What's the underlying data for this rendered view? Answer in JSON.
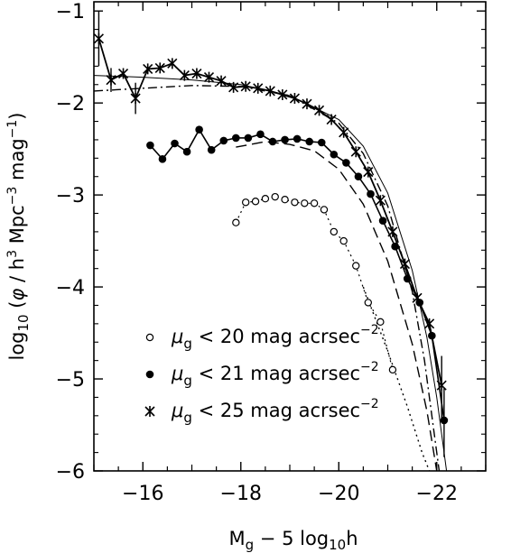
{
  "chart_data": {
    "type": "scatter",
    "title": "",
    "xlabel": "M_g − 5 log₁₀h",
    "ylabel": "log₁₀ (φ / h³ Mpc⁻³ mag⁻¹)",
    "xlim": [
      -15.0,
      -23.0
    ],
    "ylim": [
      -6.0,
      -0.9
    ],
    "x_reversed": true,
    "x_ticks": [
      -16,
      -18,
      -20,
      -22
    ],
    "x_tick_labels": [
      "−16",
      "−18",
      "−20",
      "−22"
    ],
    "y_ticks": [
      -1,
      -2,
      -3,
      -4,
      -5,
      -6
    ],
    "y_tick_labels": [
      "−1",
      "−2",
      "−3",
      "−4",
      "−5",
      "−6"
    ],
    "legend": {
      "placement": "lower-left",
      "entries": [
        {
          "marker": "open-circle",
          "symbol": "μ",
          "sub": "g",
          "text": " < 20 mag acrsec",
          "sup": "−2"
        },
        {
          "marker": "filled-circle",
          "symbol": "μ",
          "sub": "g",
          "text": " < 21 mag acrsec",
          "sup": "−2"
        },
        {
          "marker": "star",
          "symbol": "μ",
          "sub": "g",
          "text": " < 25 mag acrsec",
          "sup": "−2"
        }
      ]
    },
    "series": [
      {
        "marker": "star",
        "line": "solid",
        "points": [
          [
            -15.1,
            -1.3
          ],
          [
            -15.35,
            -1.75
          ],
          [
            -15.6,
            -1.68
          ],
          [
            -15.85,
            -1.95
          ],
          [
            -16.1,
            -1.63
          ],
          [
            -16.35,
            -1.62
          ],
          [
            -16.6,
            -1.57
          ],
          [
            -16.85,
            -1.7
          ],
          [
            -17.1,
            -1.68
          ],
          [
            -17.35,
            -1.72
          ],
          [
            -17.6,
            -1.76
          ],
          [
            -17.85,
            -1.83
          ],
          [
            -18.1,
            -1.82
          ],
          [
            -18.35,
            -1.84
          ],
          [
            -18.6,
            -1.87
          ],
          [
            -18.85,
            -1.91
          ],
          [
            -19.1,
            -1.95
          ],
          [
            -19.35,
            -2.01
          ],
          [
            -19.6,
            -2.08
          ],
          [
            -19.85,
            -2.18
          ],
          [
            -20.1,
            -2.32
          ],
          [
            -20.35,
            -2.53
          ],
          [
            -20.6,
            -2.75
          ],
          [
            -20.85,
            -3.06
          ],
          [
            -21.1,
            -3.4
          ],
          [
            -21.35,
            -3.75
          ],
          [
            -21.6,
            -4.12
          ],
          [
            -21.85,
            -4.4
          ],
          [
            -22.1,
            -5.07
          ]
        ],
        "error_bars": [
          [
            -15.1,
            -1.0,
            -1.6
          ],
          [
            -15.35,
            -1.62,
            -1.88
          ],
          [
            -15.85,
            -1.78,
            -2.12
          ],
          [
            -22.1,
            -4.75,
            -5.45
          ]
        ]
      },
      {
        "marker": "filled-circle",
        "line": "solid-segments",
        "points": [
          [
            -16.15,
            -2.46
          ],
          [
            -16.4,
            -2.61
          ],
          [
            -16.65,
            -2.44
          ],
          [
            -16.9,
            -2.53
          ],
          [
            -17.15,
            -2.29
          ],
          [
            -17.4,
            -2.51
          ],
          [
            -17.65,
            -2.41
          ],
          [
            -17.9,
            -2.38
          ],
          [
            -18.15,
            -2.38
          ],
          [
            -18.4,
            -2.34
          ],
          [
            -18.65,
            -2.42
          ],
          [
            -18.9,
            -2.4
          ],
          [
            -19.15,
            -2.39
          ],
          [
            -19.4,
            -2.42
          ],
          [
            -19.65,
            -2.43
          ],
          [
            -19.9,
            -2.56
          ],
          [
            -20.15,
            -2.65
          ],
          [
            -20.4,
            -2.8
          ],
          [
            -20.65,
            -2.99
          ],
          [
            -20.9,
            -3.28
          ],
          [
            -21.15,
            -3.56
          ],
          [
            -21.4,
            -3.91
          ],
          [
            -21.65,
            -4.17
          ],
          [
            -21.9,
            -4.53
          ],
          [
            -22.15,
            -5.45
          ]
        ],
        "error_bars": [
          [
            -22.15,
            -5.1,
            -5.85
          ]
        ]
      },
      {
        "marker": "open-circle",
        "line": "dotted",
        "points": [
          [
            -17.9,
            -3.3
          ],
          [
            -18.1,
            -3.08
          ],
          [
            -18.3,
            -3.07
          ],
          [
            -18.5,
            -3.04
          ],
          [
            -18.7,
            -3.02
          ],
          [
            -18.9,
            -3.05
          ],
          [
            -19.1,
            -3.08
          ],
          [
            -19.3,
            -3.09
          ],
          [
            -19.5,
            -3.09
          ],
          [
            -19.7,
            -3.16
          ],
          [
            -19.9,
            -3.4
          ],
          [
            -20.1,
            -3.5
          ],
          [
            -20.35,
            -3.77
          ],
          [
            -20.6,
            -4.17
          ],
          [
            -20.85,
            -4.38
          ],
          [
            -21.1,
            -4.9
          ]
        ]
      }
    ],
    "fit_curves": [
      {
        "line": "solid-thin",
        "points": [
          [
            -15.0,
            -1.7
          ],
          [
            -16.0,
            -1.72
          ],
          [
            -17.0,
            -1.75
          ],
          [
            -18.0,
            -1.8
          ],
          [
            -19.0,
            -1.92
          ],
          [
            -20.0,
            -2.18
          ],
          [
            -20.5,
            -2.47
          ],
          [
            -21.0,
            -2.98
          ],
          [
            -21.5,
            -3.82
          ],
          [
            -21.8,
            -4.55
          ],
          [
            -22.0,
            -5.2
          ],
          [
            -22.2,
            -6.0
          ]
        ]
      },
      {
        "line": "dash-dot",
        "points": [
          [
            -15.0,
            -1.87
          ],
          [
            -16.0,
            -1.84
          ],
          [
            -17.0,
            -1.81
          ],
          [
            -18.0,
            -1.82
          ],
          [
            -19.0,
            -1.92
          ],
          [
            -20.0,
            -2.22
          ],
          [
            -20.5,
            -2.55
          ],
          [
            -21.0,
            -3.12
          ],
          [
            -21.5,
            -4.05
          ],
          [
            -21.75,
            -4.8
          ],
          [
            -21.95,
            -5.6
          ],
          [
            -22.05,
            -6.0
          ]
        ]
      },
      {
        "line": "long-dash",
        "points": [
          [
            -17.9,
            -2.48
          ],
          [
            -18.5,
            -2.42
          ],
          [
            -19.0,
            -2.45
          ],
          [
            -19.5,
            -2.52
          ],
          [
            -20.0,
            -2.72
          ],
          [
            -20.5,
            -3.1
          ],
          [
            -21.0,
            -3.72
          ],
          [
            -21.5,
            -4.62
          ],
          [
            -21.8,
            -5.35
          ],
          [
            -22.0,
            -6.0
          ]
        ]
      },
      {
        "line": "dotted-steep",
        "points": [
          [
            -20.5,
            -4.0
          ],
          [
            -21.0,
            -4.7
          ],
          [
            -21.4,
            -5.3
          ],
          [
            -21.7,
            -5.8
          ],
          [
            -21.85,
            -6.0
          ]
        ]
      }
    ]
  }
}
